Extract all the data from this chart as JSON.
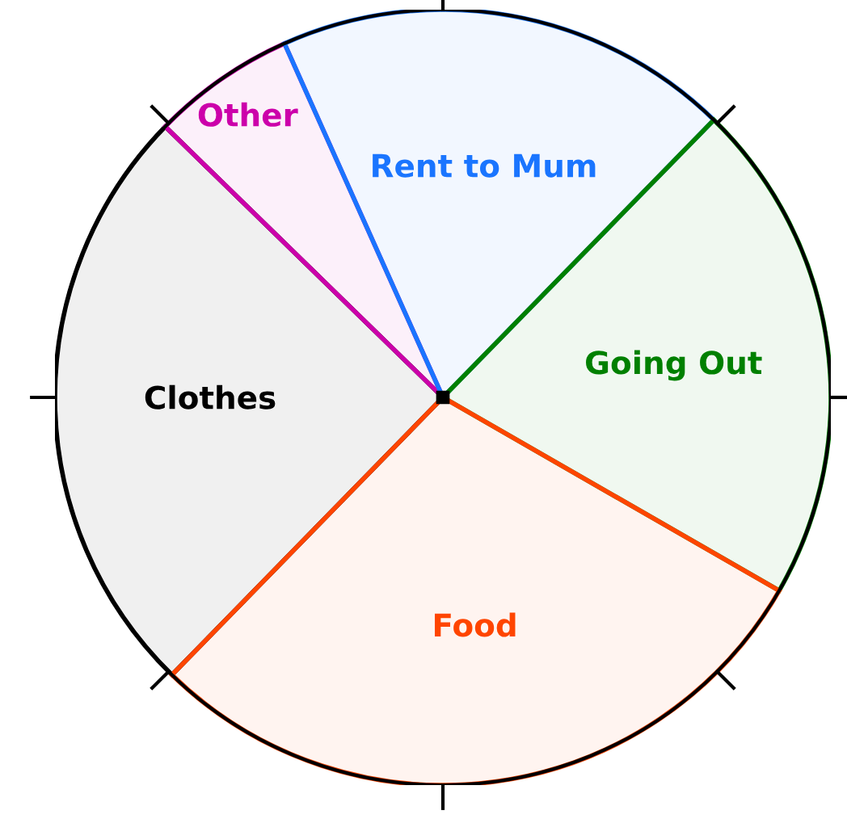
{
  "chart_data": {
    "type": "pie",
    "categories": [
      "Clothes",
      "Other",
      "Rent to Mum",
      "Going Out",
      "Food"
    ],
    "values": [
      25,
      6,
      19,
      21,
      29
    ],
    "colors": [
      "#000000",
      "#cc00aa",
      "#1a75ff",
      "#008000",
      "#ff4500"
    ]
  }
}
